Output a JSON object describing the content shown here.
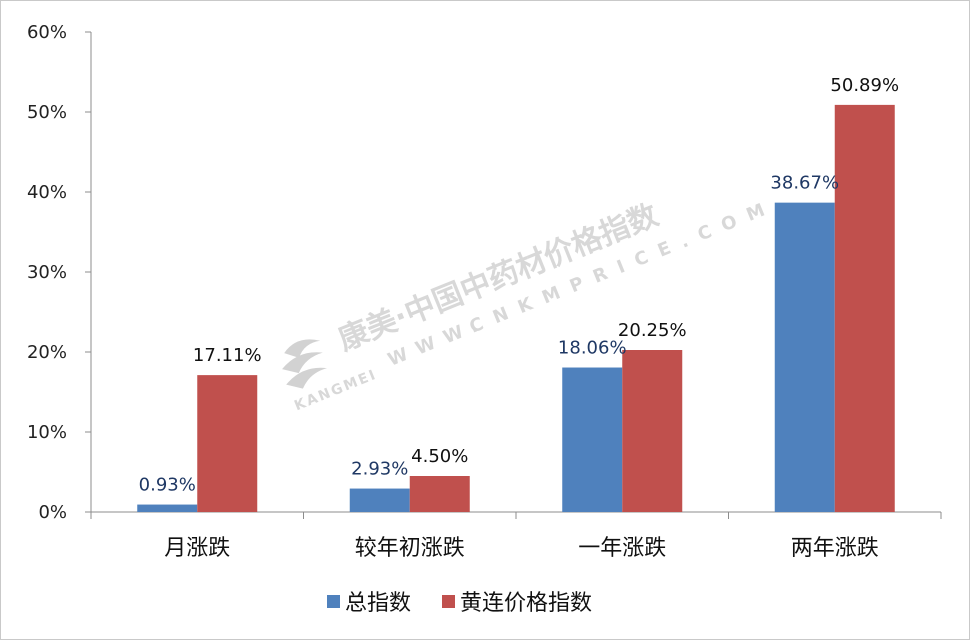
{
  "chart_data": {
    "type": "bar",
    "title": "",
    "xlabel": "",
    "ylabel": "",
    "ylim": [
      0,
      60
    ],
    "y_ticks": [
      "0%",
      "10%",
      "20%",
      "30%",
      "40%",
      "50%",
      "60%"
    ],
    "categories": [
      "月涨跌",
      "较年初涨跌",
      "一年涨跌",
      "两年涨跌"
    ],
    "series": [
      {
        "name": "总指数",
        "color": "#4f81bd",
        "label_color": "#1f3864",
        "values": [
          0.93,
          2.93,
          18.06,
          38.67
        ],
        "labels": [
          "0.93%",
          "2.93%",
          "18.06%",
          "38.67%"
        ]
      },
      {
        "name": "黄连价格指数",
        "color": "#c0504d",
        "label_color": "#111111",
        "values": [
          17.11,
          4.5,
          20.25,
          50.89
        ],
        "labels": [
          "17.11%",
          "4.50%",
          "20.25%",
          "50.89%"
        ]
      }
    ],
    "legend_position": "bottom",
    "grid": false
  },
  "watermark": {
    "brand": "康美·中国中药材价格指数",
    "site": "CNKMPRICE.COM",
    "www": "WWW.",
    "logo_word": "KANGMEI"
  }
}
